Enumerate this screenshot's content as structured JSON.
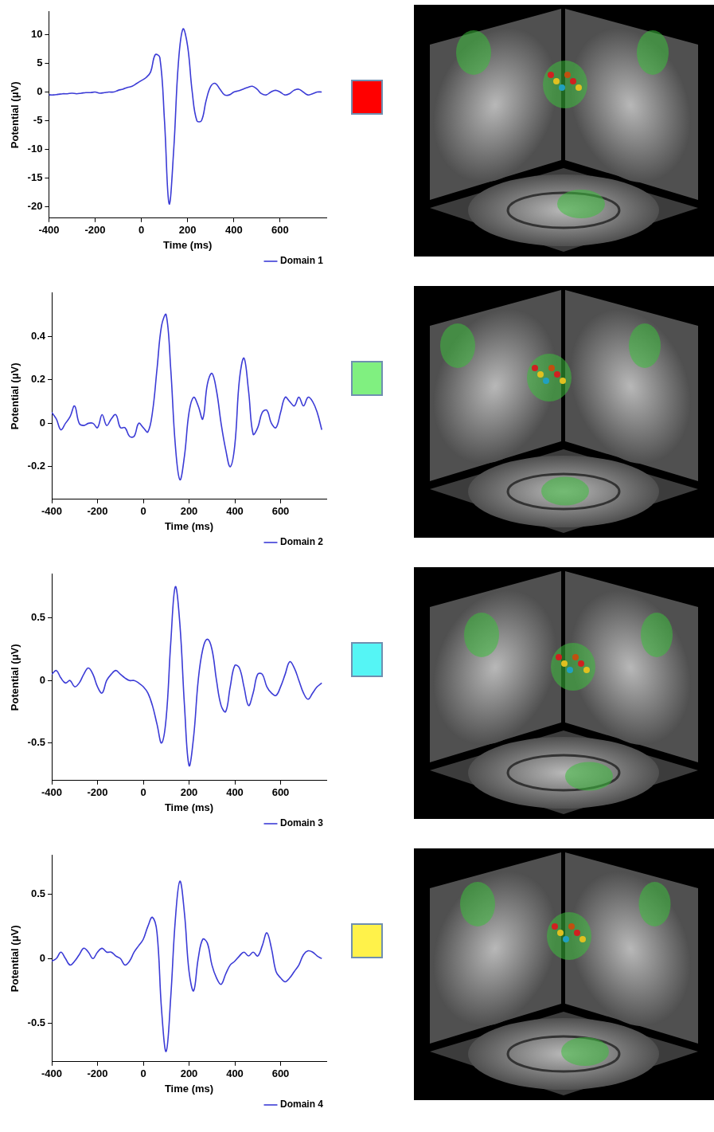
{
  "chart_data": [
    {
      "type": "line",
      "x_label": "Time (ms)",
      "y_label": "Potential (μV)",
      "x": [
        -400,
        -380,
        -360,
        -340,
        -320,
        -300,
        -280,
        -260,
        -240,
        -220,
        -200,
        -180,
        -160,
        -140,
        -120,
        -100,
        -80,
        -60,
        -40,
        -20,
        0,
        20,
        40,
        60,
        80,
        100,
        120,
        140,
        160,
        180,
        200,
        220,
        240,
        260,
        280,
        300,
        320,
        340,
        360,
        380,
        400,
        420,
        440,
        460,
        480,
        500,
        520,
        540,
        560,
        580,
        600,
        620,
        640,
        660,
        680,
        700,
        720,
        740,
        760,
        780
      ],
      "series": [
        {
          "name": "Domain 1",
          "color": "#3b3bd6",
          "values": [
            -0.5,
            -0.5,
            -0.4,
            -0.3,
            -0.3,
            -0.2,
            -0.3,
            -0.2,
            -0.1,
            -0.1,
            0,
            -0.2,
            -0.1,
            0,
            0,
            0.3,
            0.5,
            0.8,
            1,
            1.5,
            2,
            2.5,
            3.5,
            6.5,
            6,
            -5,
            -19.5,
            -10,
            5,
            11,
            8,
            0,
            -5,
            -5,
            -1.5,
            1,
            1.5,
            0.5,
            -0.5,
            -0.5,
            0,
            0.2,
            0.5,
            0.8,
            1,
            0.5,
            -0.3,
            -0.5,
            0,
            0.3,
            0,
            -0.5,
            -0.3,
            0.3,
            0.5,
            0,
            -0.5,
            -0.3,
            0,
            0
          ]
        }
      ],
      "xlim": [
        -400,
        800
      ],
      "xticks": [
        -400,
        -200,
        0,
        200,
        400,
        600
      ],
      "ylim": [
        -22,
        14
      ],
      "yticks": [
        -20,
        -15,
        -10,
        -5,
        0,
        5,
        10
      ],
      "grid": false,
      "legend": "bottom right"
    },
    {
      "type": "line",
      "x_label": "Time (ms)",
      "y_label": "Potential (μV)",
      "x": [
        -400,
        -380,
        -360,
        -340,
        -320,
        -300,
        -280,
        -260,
        -240,
        -220,
        -200,
        -180,
        -160,
        -140,
        -120,
        -100,
        -80,
        -60,
        -40,
        -20,
        0,
        20,
        40,
        60,
        80,
        100,
        120,
        140,
        160,
        180,
        200,
        220,
        240,
        260,
        280,
        300,
        320,
        340,
        360,
        380,
        400,
        420,
        440,
        460,
        480,
        500,
        520,
        540,
        560,
        580,
        600,
        620,
        640,
        660,
        680,
        700,
        720,
        740,
        760,
        780
      ],
      "series": [
        {
          "name": "Domain 2",
          "color": "#3b3bd6",
          "values": [
            0.05,
            0.02,
            -0.03,
            0,
            0.03,
            0.08,
            0,
            -0.01,
            0,
            0,
            -0.02,
            0.04,
            -0.01,
            0.02,
            0.04,
            -0.02,
            -0.02,
            -0.06,
            -0.06,
            0,
            -0.02,
            -0.04,
            0.05,
            0.25,
            0.45,
            0.5,
            0.25,
            -0.1,
            -0.26,
            -0.15,
            0.05,
            0.12,
            0.08,
            0.02,
            0.18,
            0.23,
            0.15,
            0,
            -0.12,
            -0.2,
            -0.1,
            0.2,
            0.3,
            0.15,
            -0.05,
            -0.02,
            0.05,
            0.06,
            0,
            -0.02,
            0.05,
            0.12,
            0.1,
            0.08,
            0.12,
            0.08,
            0.12,
            0.1,
            0.05,
            -0.03
          ]
        }
      ],
      "xlim": [
        -400,
        800
      ],
      "xticks": [
        -400,
        -200,
        0,
        200,
        400,
        600
      ],
      "ylim": [
        -0.35,
        0.6
      ],
      "yticks": [
        -0.2,
        0,
        0.2,
        0.4
      ],
      "grid": false,
      "legend": "bottom right"
    },
    {
      "type": "line",
      "x_label": "Time (ms)",
      "y_label": "Potential (μV)",
      "x": [
        -400,
        -380,
        -360,
        -340,
        -320,
        -300,
        -280,
        -260,
        -240,
        -220,
        -200,
        -180,
        -160,
        -140,
        -120,
        -100,
        -80,
        -60,
        -40,
        -20,
        0,
        20,
        40,
        60,
        80,
        100,
        120,
        140,
        160,
        180,
        200,
        220,
        240,
        260,
        280,
        300,
        320,
        340,
        360,
        380,
        400,
        420,
        440,
        460,
        480,
        500,
        520,
        540,
        560,
        580,
        600,
        620,
        640,
        660,
        680,
        700,
        720,
        740,
        760,
        780
      ],
      "series": [
        {
          "name": "Domain 3",
          "color": "#3b3bd6",
          "values": [
            0.05,
            0.08,
            0.02,
            -0.02,
            0,
            -0.05,
            -0.02,
            0.05,
            0.1,
            0.05,
            -0.05,
            -0.1,
            0,
            0.05,
            0.08,
            0.05,
            0.02,
            0,
            0,
            -0.02,
            -0.05,
            -0.1,
            -0.2,
            -0.35,
            -0.5,
            -0.3,
            0.3,
            0.75,
            0.45,
            -0.2,
            -0.68,
            -0.45,
            0,
            0.25,
            0.33,
            0.25,
            0,
            -0.2,
            -0.25,
            -0.05,
            0.12,
            0.1,
            -0.05,
            -0.2,
            -0.1,
            0.05,
            0.05,
            -0.05,
            -0.1,
            -0.12,
            -0.05,
            0.05,
            0.15,
            0.1,
            0,
            -0.1,
            -0.15,
            -0.1,
            -0.05,
            -0.02
          ]
        }
      ],
      "xlim": [
        -400,
        800
      ],
      "xticks": [
        -400,
        -200,
        0,
        200,
        400,
        600
      ],
      "ylim": [
        -0.8,
        0.85
      ],
      "yticks": [
        -0.5,
        0,
        0.5
      ],
      "grid": false,
      "legend": "bottom right"
    },
    {
      "type": "line",
      "x_label": "Time (ms)",
      "y_label": "Potential (μV)",
      "x": [
        -400,
        -380,
        -360,
        -340,
        -320,
        -300,
        -280,
        -260,
        -240,
        -220,
        -200,
        -180,
        -160,
        -140,
        -120,
        -100,
        -80,
        -60,
        -40,
        -20,
        0,
        20,
        40,
        60,
        80,
        100,
        120,
        140,
        160,
        180,
        200,
        220,
        240,
        260,
        280,
        300,
        320,
        340,
        360,
        380,
        400,
        420,
        440,
        460,
        480,
        500,
        520,
        540,
        560,
        580,
        600,
        620,
        640,
        660,
        680,
        700,
        720,
        740,
        760,
        780
      ],
      "series": [
        {
          "name": "Domain 4",
          "color": "#3b3bd6",
          "values": [
            -0.02,
            0,
            0.05,
            0,
            -0.05,
            -0.02,
            0.03,
            0.08,
            0.05,
            0,
            0.05,
            0.08,
            0.05,
            0.05,
            0.02,
            0,
            -0.05,
            -0.02,
            0.05,
            0.1,
            0.15,
            0.25,
            0.32,
            0.2,
            -0.4,
            -0.72,
            -0.3,
            0.3,
            0.6,
            0.35,
            -0.1,
            -0.25,
            0,
            0.15,
            0.12,
            -0.05,
            -0.15,
            -0.2,
            -0.12,
            -0.05,
            -0.02,
            0.02,
            0.05,
            0.02,
            0.05,
            0.02,
            0.1,
            0.2,
            0.08,
            -0.1,
            -0.15,
            -0.18,
            -0.15,
            -0.1,
            -0.05,
            0.03,
            0.06,
            0.05,
            0.02,
            0
          ]
        }
      ],
      "xlim": [
        -400,
        800
      ],
      "xticks": [
        -400,
        -200,
        0,
        200,
        400,
        600
      ],
      "ylim": [
        -0.8,
        0.8
      ],
      "yticks": [
        -0.5,
        0,
        0.5
      ],
      "grid": false,
      "legend": "bottom right"
    }
  ],
  "swatch_colors": [
    "#ff0000",
    "#80f080",
    "#55f5f5",
    "#fff24a"
  ]
}
